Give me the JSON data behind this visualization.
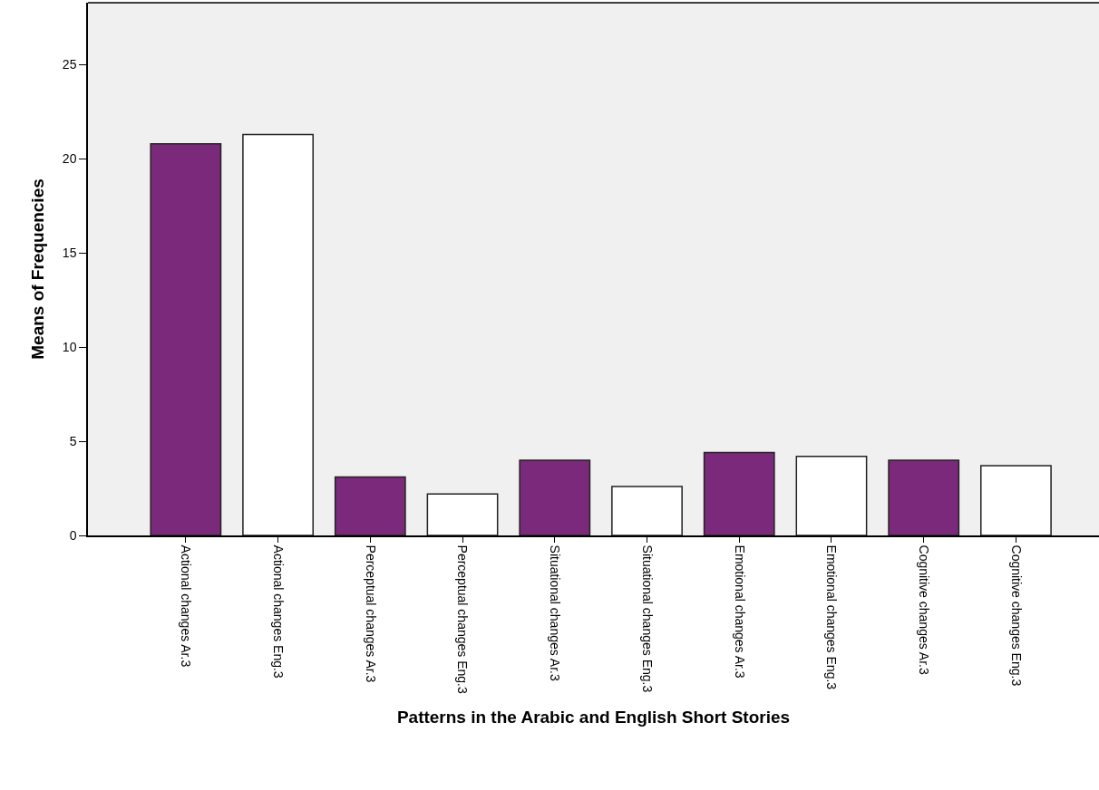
{
  "chart_data": {
    "type": "bar",
    "xlabel": "Patterns in the Arabic and English Short Stories",
    "ylabel": "Means of Frequencies",
    "categories": [
      "Actional changes Ar.3",
      "Actional changes Eng.3",
      "Perceptual changes Ar.3",
      "Perceptual changes Eng.3",
      "Situational changes Ar.3",
      "Situational changes Eng.3",
      "Emotional changes Ar.3",
      "Emotional changes Eng.3",
      "Cognitive changes Ar.3",
      "Cognitive changes Eng.3"
    ],
    "values": [
      20.8,
      21.3,
      3.1,
      2.2,
      4.0,
      2.6,
      4.4,
      4.2,
      4.0,
      3.7
    ],
    "colors": [
      "#7b2a7b",
      "#ffffff",
      "#7b2a7b",
      "#ffffff",
      "#7b2a7b",
      "#ffffff",
      "#7b2a7b",
      "#ffffff",
      "#7b2a7b",
      "#ffffff"
    ],
    "ylim": [
      0,
      28.3
    ],
    "yticks": [
      0,
      5,
      10,
      15,
      20,
      25
    ],
    "grid": false,
    "legend": false
  }
}
